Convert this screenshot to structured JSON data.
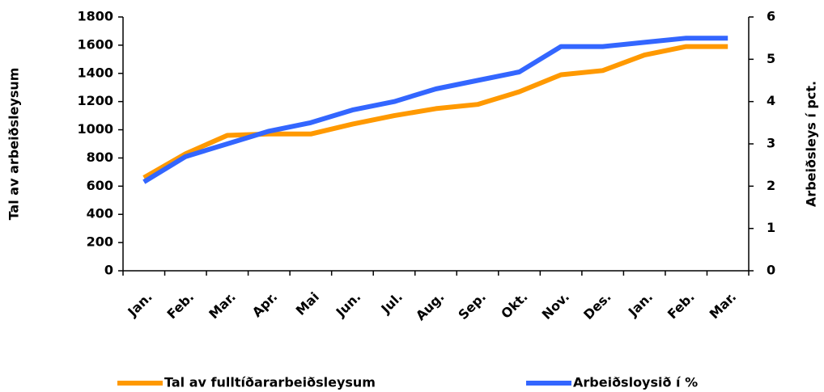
{
  "chart_data": {
    "type": "line",
    "categories": [
      "Jan.",
      "Feb.",
      "Mar.",
      "Apr.",
      "Mai",
      "Jun.",
      "Jul.",
      "Aug.",
      "Sep.",
      "Okt.",
      "Nov.",
      "Des.",
      "Jan.",
      "Feb.",
      "Mar."
    ],
    "y_label": "Tal av arbeiðsleysum",
    "y2_label": "Arbeiðsleys í pct.",
    "series": [
      {
        "name": "Tal av fulltíðararbeiðsleysum",
        "color": "#ff9900",
        "values": [
          660,
          830,
          960,
          970,
          970,
          1040,
          1100,
          1150,
          1180,
          1270,
          1390,
          1420,
          1530,
          1590,
          1590
        ]
      },
      {
        "name": "Arbeiðsloysið í %",
        "color": "#3366ff",
        "axis": "y2",
        "values": [
          2.1,
          2.7,
          3.0,
          3.3,
          3.5,
          3.8,
          4.0,
          4.3,
          4.5,
          4.7,
          5.3,
          5.3,
          5.4,
          5.5,
          5.5
        ]
      }
    ],
    "ylim": [
      0,
      1800
    ],
    "yticks": [
      0,
      200,
      400,
      600,
      800,
      1000,
      1200,
      1400,
      1600,
      1800
    ],
    "y2lim": [
      0,
      6
    ],
    "y2ticks": [
      0,
      1,
      2,
      3,
      4,
      5,
      6
    ],
    "grid": false,
    "legend": "bottom"
  }
}
